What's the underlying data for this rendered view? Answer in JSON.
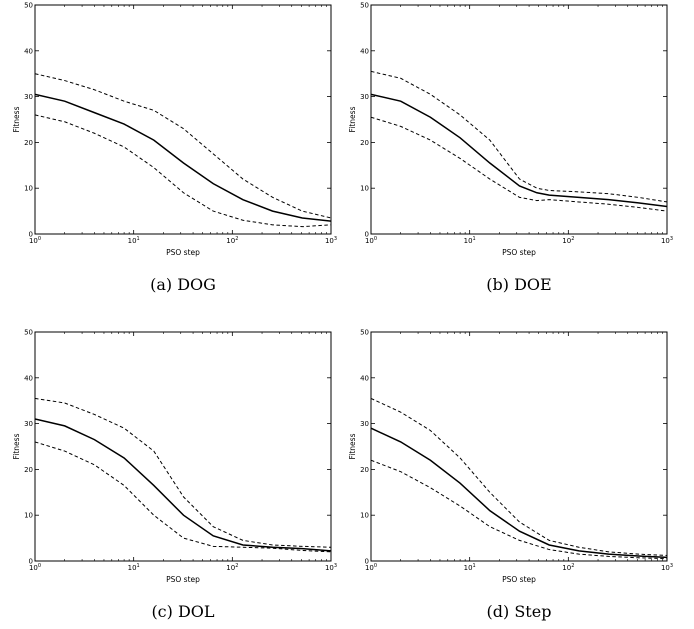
{
  "chart_data": [
    {
      "type": "line",
      "caption": "(a) DOG",
      "xlabel": "PSO step",
      "ylabel": "Fitness",
      "xscale": "log",
      "xlim": [
        1,
        1000
      ],
      "ylim": [
        0,
        50
      ],
      "xticks": [
        {
          "base": "10",
          "exp": "0"
        },
        {
          "base": "10",
          "exp": "1"
        },
        {
          "base": "10",
          "exp": "2"
        },
        {
          "base": "10",
          "exp": "3"
        }
      ],
      "yticks": [
        "0",
        "10",
        "20",
        "30",
        "40",
        "50"
      ],
      "grid": false,
      "series": [
        {
          "style": "solid",
          "x": [
            1,
            2,
            4,
            8,
            16,
            32,
            64,
            128,
            256,
            512,
            1000
          ],
          "y": [
            30.5,
            29,
            26.5,
            24,
            20.5,
            15.5,
            11,
            7.5,
            5,
            3.5,
            2.8
          ]
        },
        {
          "style": "dashed",
          "x": [
            1,
            2,
            4,
            8,
            16,
            32,
            64,
            128,
            256,
            512,
            1000
          ],
          "y": [
            35,
            33.5,
            31.5,
            29,
            27,
            23,
            17.5,
            12,
            8,
            5,
            3.5
          ]
        },
        {
          "style": "dashed",
          "x": [
            1,
            2,
            4,
            8,
            16,
            32,
            64,
            128,
            256,
            512,
            1000
          ],
          "y": [
            26,
            24.5,
            22,
            19,
            14.5,
            9,
            5,
            3,
            2,
            1.6,
            2
          ]
        }
      ]
    },
    {
      "type": "line",
      "caption": "(b) DOE",
      "xlabel": "PSO step",
      "ylabel": "Fitness",
      "xscale": "log",
      "xlim": [
        1,
        1000
      ],
      "ylim": [
        0,
        50
      ],
      "xticks": [
        {
          "base": "10",
          "exp": "0"
        },
        {
          "base": "10",
          "exp": "1"
        },
        {
          "base": "10",
          "exp": "2"
        },
        {
          "base": "10",
          "exp": "3"
        }
      ],
      "yticks": [
        "0",
        "10",
        "20",
        "30",
        "40",
        "50"
      ],
      "grid": false,
      "series": [
        {
          "style": "solid",
          "x": [
            1,
            2,
            4,
            8,
            16,
            32,
            48,
            64,
            128,
            256,
            512,
            1000
          ],
          "y": [
            30.5,
            29,
            25.5,
            21,
            15.5,
            10.5,
            9,
            8.5,
            8,
            7.5,
            6.8,
            6
          ]
        },
        {
          "style": "dashed",
          "x": [
            1,
            2,
            4,
            8,
            16,
            32,
            48,
            64,
            128,
            256,
            512,
            1000
          ],
          "y": [
            35.5,
            34,
            30.5,
            26,
            20.5,
            12,
            10,
            9.5,
            9.2,
            8.8,
            8,
            7
          ]
        },
        {
          "style": "dashed",
          "x": [
            1,
            2,
            4,
            8,
            16,
            32,
            48,
            64,
            128,
            256,
            512,
            1000
          ],
          "y": [
            25.5,
            23.5,
            20.5,
            16.5,
            12,
            8,
            7.3,
            7.5,
            7,
            6.5,
            5.8,
            5
          ]
        }
      ]
    },
    {
      "type": "line",
      "caption": "(c) DOL",
      "xlabel": "PSO step",
      "ylabel": "Fitness",
      "xscale": "log",
      "xlim": [
        1,
        1000
      ],
      "ylim": [
        0,
        50
      ],
      "xticks": [
        {
          "base": "10",
          "exp": "0"
        },
        {
          "base": "10",
          "exp": "1"
        },
        {
          "base": "10",
          "exp": "2"
        },
        {
          "base": "10",
          "exp": "3"
        }
      ],
      "yticks": [
        "0",
        "10",
        "20",
        "30",
        "40",
        "50"
      ],
      "grid": false,
      "series": [
        {
          "style": "solid",
          "x": [
            1,
            2,
            4,
            8,
            16,
            32,
            64,
            128,
            256,
            512,
            1000
          ],
          "y": [
            31,
            29.5,
            26.5,
            22.5,
            16.5,
            10,
            5.5,
            3.5,
            3,
            2.7,
            2.2
          ]
        },
        {
          "style": "dashed",
          "x": [
            1,
            2,
            4,
            8,
            16,
            32,
            64,
            128,
            256,
            512,
            1000
          ],
          "y": [
            35.5,
            34.5,
            32,
            29,
            24,
            14,
            7.5,
            4.5,
            3.5,
            3.2,
            3
          ]
        },
        {
          "style": "dashed",
          "x": [
            1,
            2,
            4,
            8,
            16,
            32,
            64,
            128,
            256,
            512,
            1000
          ],
          "y": [
            26,
            24,
            21,
            16.5,
            10,
            5,
            3.2,
            3,
            2.8,
            2.3,
            2
          ]
        }
      ]
    },
    {
      "type": "line",
      "caption": "(d) Step",
      "xlabel": "PSO step",
      "ylabel": "Fitness",
      "xscale": "log",
      "xlim": [
        1,
        1000
      ],
      "ylim": [
        0,
        50
      ],
      "xticks": [
        {
          "base": "10",
          "exp": "0"
        },
        {
          "base": "10",
          "exp": "1"
        },
        {
          "base": "10",
          "exp": "2"
        },
        {
          "base": "10",
          "exp": "3"
        }
      ],
      "yticks": [
        "0",
        "10",
        "20",
        "30",
        "40",
        "50"
      ],
      "grid": false,
      "series": [
        {
          "style": "solid",
          "x": [
            1,
            2,
            4,
            8,
            16,
            32,
            64,
            128,
            256,
            512,
            1000
          ],
          "y": [
            29,
            26,
            22,
            17,
            11,
            6.5,
            3.5,
            2.2,
            1.5,
            1.1,
            0.8
          ]
        },
        {
          "style": "dashed",
          "x": [
            1,
            2,
            4,
            8,
            16,
            32,
            64,
            128,
            256,
            512,
            1000
          ],
          "y": [
            35.5,
            32.5,
            28.5,
            22.5,
            15,
            8.5,
            4.5,
            3,
            2,
            1.5,
            1.2
          ]
        },
        {
          "style": "dashed",
          "x": [
            1,
            2,
            4,
            8,
            16,
            32,
            64,
            128,
            256,
            512,
            1000
          ],
          "y": [
            22,
            19.5,
            16,
            12,
            7.5,
            4.5,
            2.5,
            1.5,
            1,
            0.7,
            0.5
          ]
        }
      ]
    }
  ]
}
